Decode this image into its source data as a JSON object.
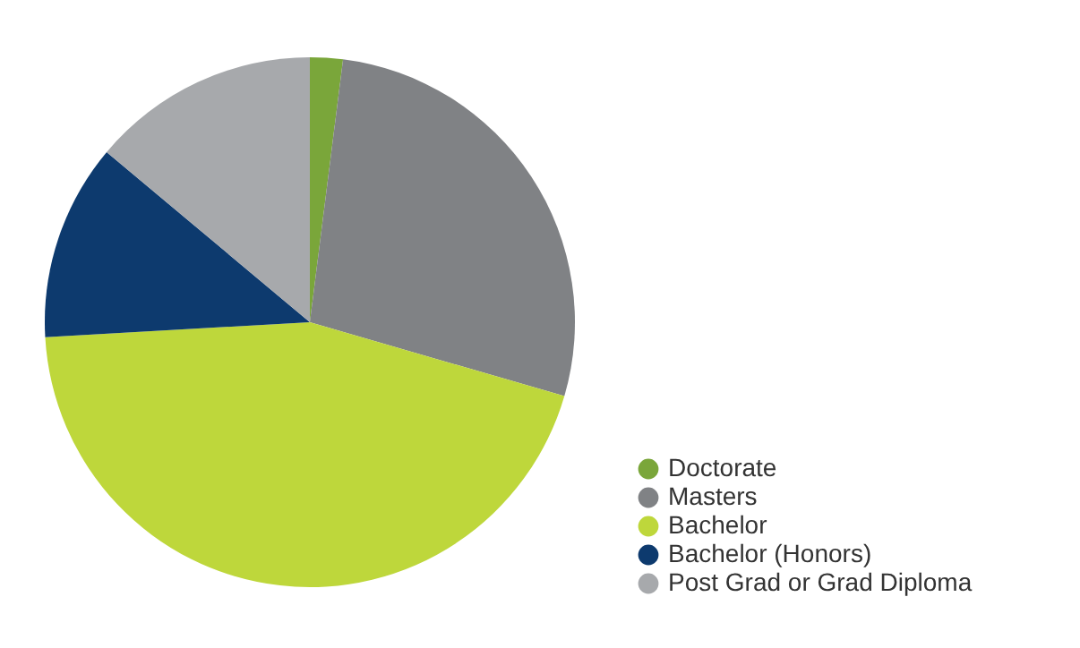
{
  "chart_data": {
    "type": "pie",
    "categories": [
      "Doctorate",
      "Masters",
      "Bachelor",
      "Bachelor (Honors)",
      "Post Grad or Grad Diploma"
    ],
    "values": [
      2,
      27.5,
      44.6,
      12,
      13.9
    ],
    "colors": [
      "#7aa63a",
      "#808285",
      "#bed73b",
      "#0d3a6e",
      "#a7a9ac"
    ],
    "legend": "bottom right"
  }
}
